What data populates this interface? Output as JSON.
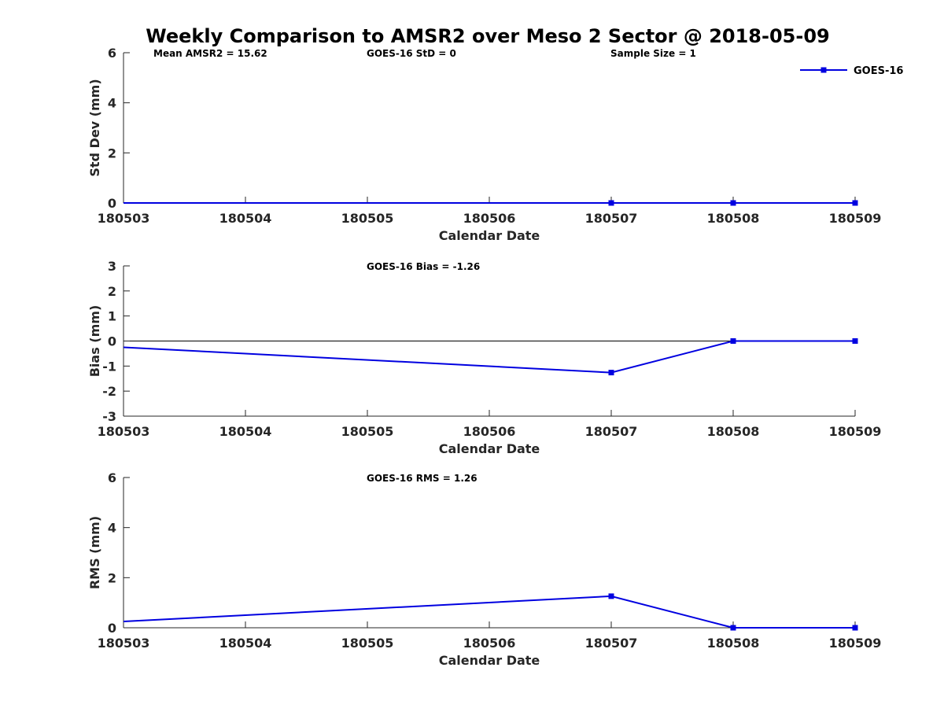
{
  "chart_data": [
    {
      "type": "line",
      "title": "Weekly Comparison to AMSR2 over Meso 2 Sector @ 2018-05-09",
      "categories": [
        "180503",
        "180504",
        "180505",
        "180506",
        "180507",
        "180508",
        "180509"
      ],
      "xlabel": "Calendar Date",
      "ylabel": "Std Dev (mm)",
      "ylim": [
        0,
        6
      ],
      "yticks": [
        "0",
        "2",
        "4",
        "6"
      ],
      "series": [
        {
          "name": "GOES-16",
          "color": "#0000e0",
          "values": [
            0,
            null,
            null,
            null,
            0,
            0,
            0
          ],
          "markers": [
            4,
            5,
            6
          ]
        }
      ],
      "annotations": [
        "Mean AMSR2 = 15.62",
        "GOES-16 StD = 0",
        "Sample Size = 1"
      ],
      "legend": {
        "entries": [
          "GOES-16"
        ],
        "placement": "top-right"
      },
      "zero_line": false
    },
    {
      "type": "line",
      "categories": [
        "180503",
        "180504",
        "180505",
        "180506",
        "180507",
        "180508",
        "180509"
      ],
      "xlabel": "Calendar Date",
      "ylabel": "Bias (mm)",
      "ylim": [
        -3,
        3
      ],
      "yticks": [
        "-3",
        "-2",
        "-1",
        "0",
        "1",
        "2",
        "3"
      ],
      "series": [
        {
          "name": "GOES-16",
          "color": "#0000e0",
          "values": [
            -0.25,
            null,
            null,
            null,
            -1.26,
            0,
            0
          ],
          "markers": [
            4,
            5,
            6
          ]
        }
      ],
      "annotations": [
        "GOES-16 Bias  = -1.26"
      ],
      "zero_line": true
    },
    {
      "type": "line",
      "categories": [
        "180503",
        "180504",
        "180505",
        "180506",
        "180507",
        "180508",
        "180509"
      ],
      "xlabel": "Calendar Date",
      "ylabel": "RMS (mm)",
      "ylim": [
        0,
        6
      ],
      "yticks": [
        "0",
        "2",
        "4",
        "6"
      ],
      "series": [
        {
          "name": "GOES-16",
          "color": "#0000e0",
          "values": [
            0.25,
            null,
            null,
            null,
            1.26,
            0,
            0
          ],
          "markers": [
            4,
            5,
            6
          ]
        }
      ],
      "annotations": [
        "GOES-16 RMS = 1.26"
      ],
      "zero_line": false
    }
  ]
}
